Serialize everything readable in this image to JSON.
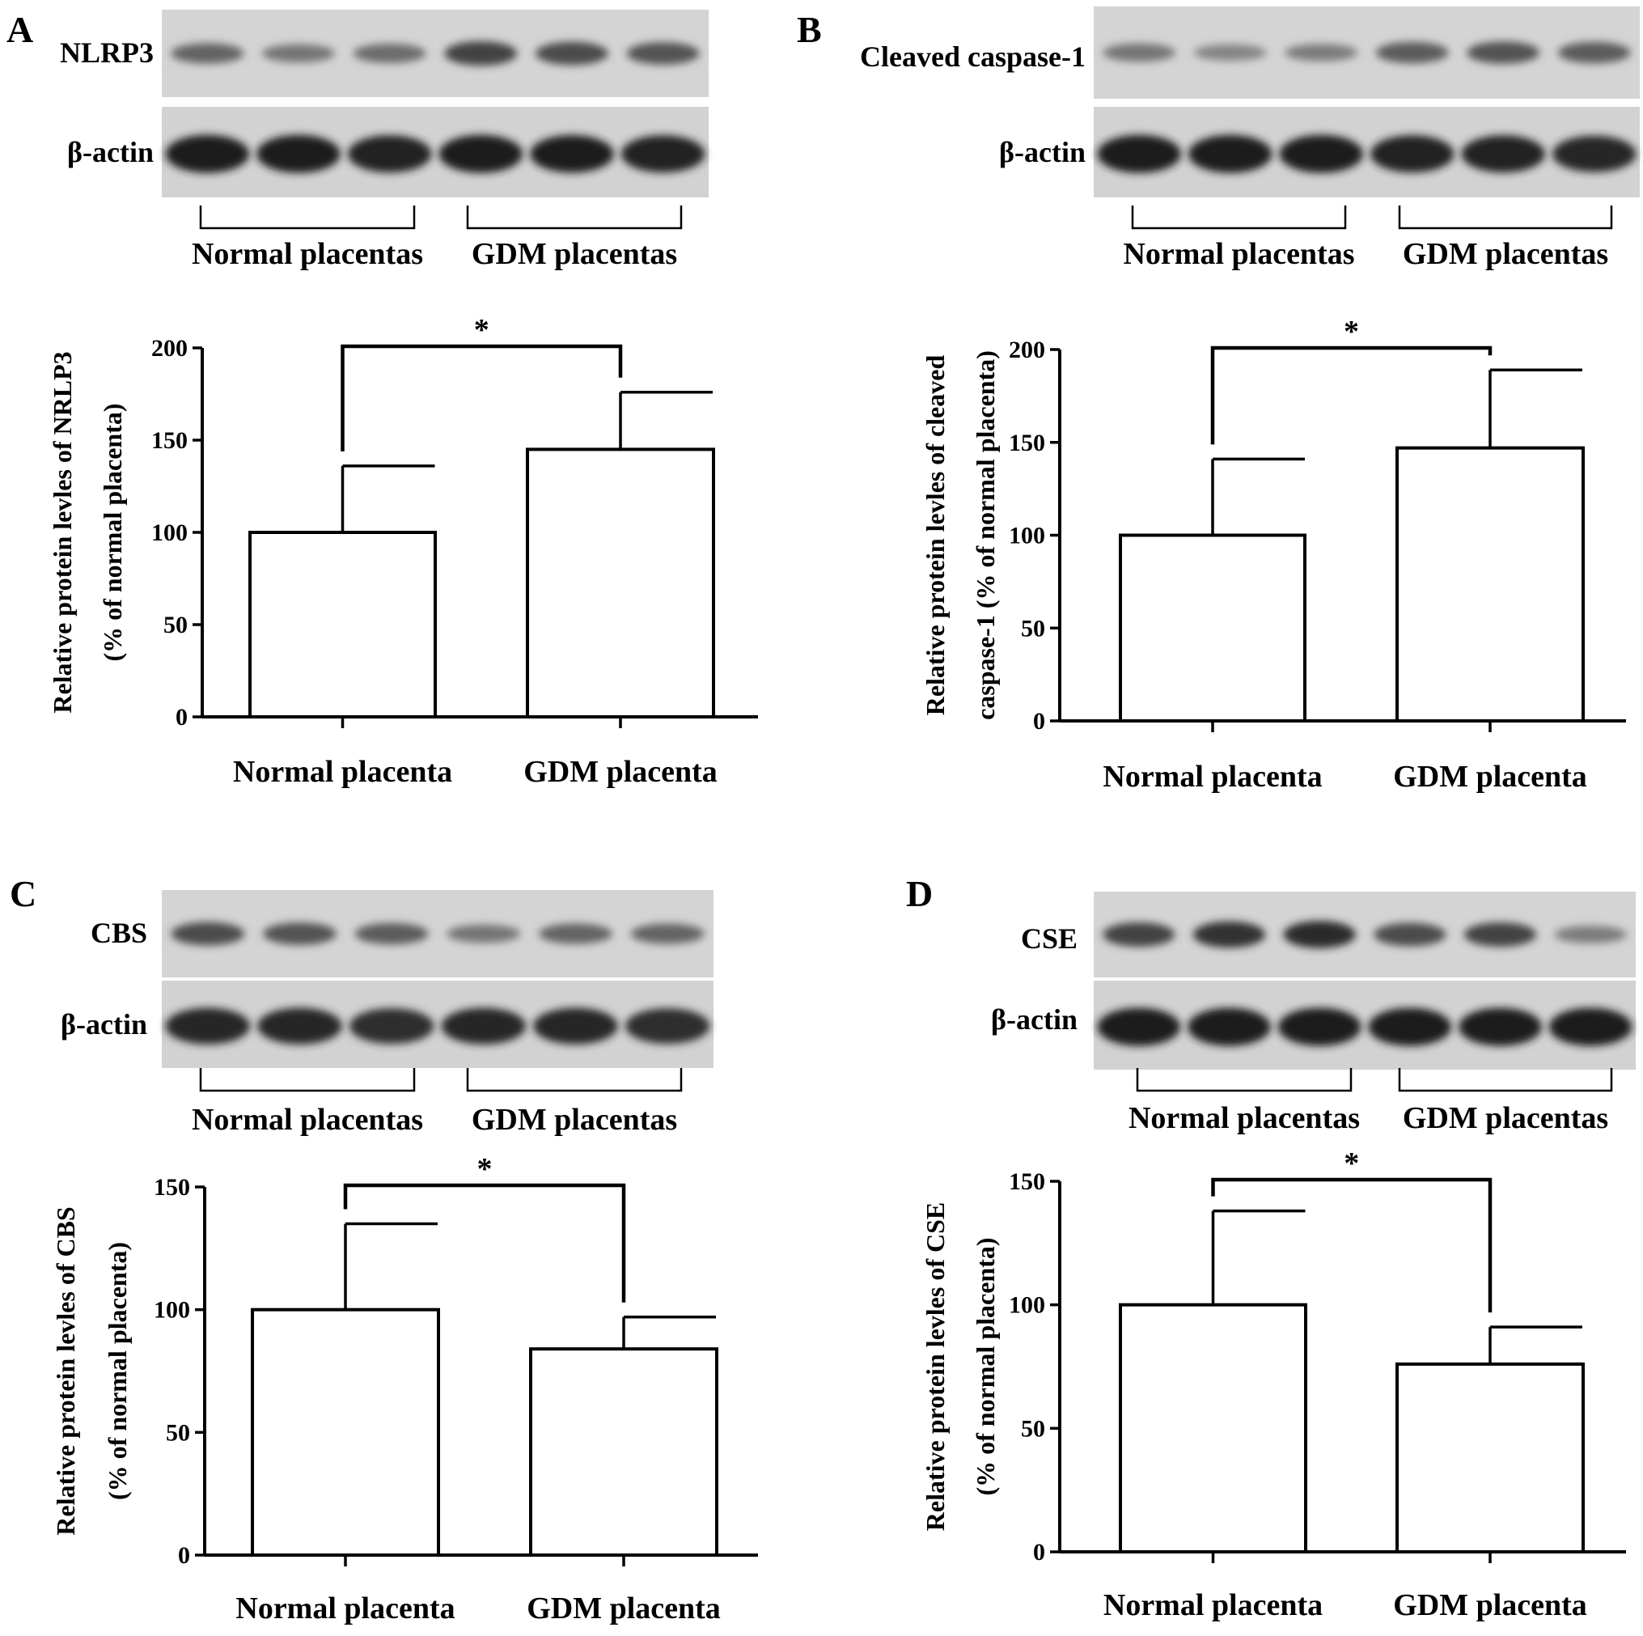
{
  "panels": [
    {
      "letter": "A",
      "blot": {
        "target_label": "NLRP3",
        "loading_label": "β-actin",
        "group_labels": [
          "Normal placentas",
          "GDM placentas"
        ],
        "target_intensity": [
          0.55,
          0.45,
          0.5,
          0.75,
          0.7,
          0.65
        ],
        "loading_intensity": [
          0.95,
          0.95,
          0.9,
          0.95,
          0.92,
          0.9
        ]
      }
    },
    {
      "letter": "B",
      "blot": {
        "target_label": "Cleaved caspase-1",
        "loading_label": "β-actin",
        "group_labels": [
          "Normal placentas",
          "GDM placentas"
        ],
        "target_intensity": [
          0.45,
          0.35,
          0.4,
          0.6,
          0.65,
          0.6
        ],
        "loading_intensity": [
          0.95,
          0.95,
          0.95,
          0.9,
          0.9,
          0.85
        ]
      }
    },
    {
      "letter": "C",
      "blot": {
        "target_label": "CBS",
        "loading_label": "β-actin",
        "group_labels": [
          "Normal placentas",
          "GDM placentas"
        ],
        "target_intensity": [
          0.7,
          0.65,
          0.6,
          0.45,
          0.55,
          0.55
        ],
        "loading_intensity": [
          0.85,
          0.85,
          0.8,
          0.85,
          0.85,
          0.8
        ]
      }
    },
    {
      "letter": "D",
      "blot": {
        "target_label": "CSE",
        "loading_label": "β-actin",
        "group_labels": [
          "Normal placentas",
          "GDM placentas"
        ],
        "target_intensity": [
          0.75,
          0.85,
          0.9,
          0.7,
          0.75,
          0.4
        ],
        "loading_intensity": [
          0.95,
          0.95,
          0.95,
          0.95,
          0.95,
          0.95
        ]
      }
    }
  ],
  "chart_data": [
    {
      "type": "bar",
      "categories": [
        "Normal placenta",
        "GDM placenta"
      ],
      "values": [
        100,
        145
      ],
      "errors": [
        36,
        31
      ],
      "ylabel_lines": [
        "Relative protein levles of NRLP3",
        "(% of normal placenta)"
      ],
      "ylim": [
        0,
        200
      ],
      "yticks": [
        0,
        50,
        100,
        150,
        200
      ],
      "significance": "*",
      "grid": false
    },
    {
      "type": "bar",
      "categories": [
        "Normal placenta",
        "GDM placenta"
      ],
      "values": [
        100,
        147
      ],
      "errors": [
        41,
        42
      ],
      "ylabel_lines": [
        "Relative protein levles of cleaved",
        "caspase-1 (% of normal placenta)"
      ],
      "ylim": [
        0,
        200
      ],
      "yticks": [
        0,
        50,
        100,
        150,
        200
      ],
      "significance": "*",
      "grid": false
    },
    {
      "type": "bar",
      "categories": [
        "Normal placenta",
        "GDM placenta"
      ],
      "values": [
        100,
        84
      ],
      "errors": [
        35,
        13
      ],
      "ylabel_lines": [
        "Relative protein levles of CBS",
        "(% of normal placenta)"
      ],
      "ylim": [
        0,
        150
      ],
      "yticks": [
        0,
        50,
        100,
        150
      ],
      "significance": "*",
      "grid": false
    },
    {
      "type": "bar",
      "categories": [
        "Normal placenta",
        "GDM placenta"
      ],
      "values": [
        100,
        76
      ],
      "errors": [
        38,
        15
      ],
      "ylabel_lines": [
        "Relative protein levles of CSE",
        "(% of normal placenta)"
      ],
      "ylim": [
        0,
        150
      ],
      "yticks": [
        0,
        50,
        100,
        150
      ],
      "significance": "*",
      "grid": false
    }
  ]
}
